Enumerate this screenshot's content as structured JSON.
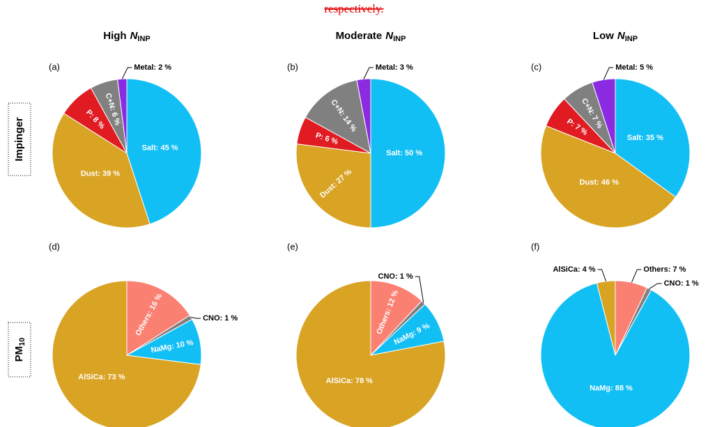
{
  "note": "respectively.",
  "column_headers": [
    {
      "text": "High",
      "symbol": "N",
      "subscript": "INP"
    },
    {
      "text": "Moderate",
      "symbol": "N",
      "subscript": "INP"
    },
    {
      "text": "Low",
      "symbol": "N",
      "subscript": "INP"
    }
  ],
  "row_headers": [
    {
      "text": "Impinger"
    },
    {
      "text": "PM",
      "subscript": "10"
    }
  ],
  "chart_data": [
    {
      "type": "pie",
      "title": "(a)",
      "values": [
        45,
        39,
        8,
        6,
        2
      ],
      "value_labels": [
        "Salt: 45 %",
        "Dust: 39 %",
        "P: 8 %",
        "C+N: 6 %",
        "Metal: 2 %"
      ],
      "colors": [
        "#12bff5",
        "#d9a324",
        "#e01b22",
        "#808080",
        "#8a2be2"
      ]
    },
    {
      "type": "pie",
      "title": "(b)",
      "values": [
        50,
        27,
        6,
        14,
        3
      ],
      "value_labels": [
        "Salt: 50 %",
        "Dust: 27 %",
        "P: 6 %",
        "C+N: 14 %",
        "Metal: 3 %"
      ],
      "colors": [
        "#12bff5",
        "#d9a324",
        "#e01b22",
        "#808080",
        "#8a2be2"
      ]
    },
    {
      "type": "pie",
      "title": "(c)",
      "values": [
        35,
        46,
        7,
        7,
        5
      ],
      "value_labels": [
        "Salt: 35 %",
        "Dust: 46 %",
        "P: 7 %",
        "C+N: 7 %",
        "Metal: 5 %"
      ],
      "colors": [
        "#12bff5",
        "#d9a324",
        "#e01b22",
        "#808080",
        "#8a2be2"
      ]
    },
    {
      "type": "pie",
      "title": "(d)",
      "values": [
        16,
        1,
        10,
        73
      ],
      "value_labels": [
        "Others: 16 %",
        "CNO: 1 %",
        "NaMg: 10 %",
        "AlSiCa: 73 %"
      ],
      "colors": [
        "#fa8072",
        "#808080",
        "#12bff5",
        "#d9a324"
      ]
    },
    {
      "type": "pie",
      "title": "(e)",
      "values": [
        12,
        1,
        9,
        78
      ],
      "value_labels": [
        "Others: 12 %",
        "CNO: 1 %",
        "NaMg: 9 %",
        "AlSiCa: 78 %"
      ],
      "colors": [
        "#fa8072",
        "#808080",
        "#12bff5",
        "#d9a324"
      ]
    },
    {
      "type": "pie",
      "title": "(f)",
      "values": [
        7,
        1,
        88,
        4
      ],
      "value_labels": [
        "Others: 7 %",
        "CNO: 1 %",
        "NaMg: 88 %",
        "AlSiCa: 4 %"
      ],
      "colors": [
        "#fa8072",
        "#808080",
        "#12bff5",
        "#d9a324"
      ]
    }
  ]
}
